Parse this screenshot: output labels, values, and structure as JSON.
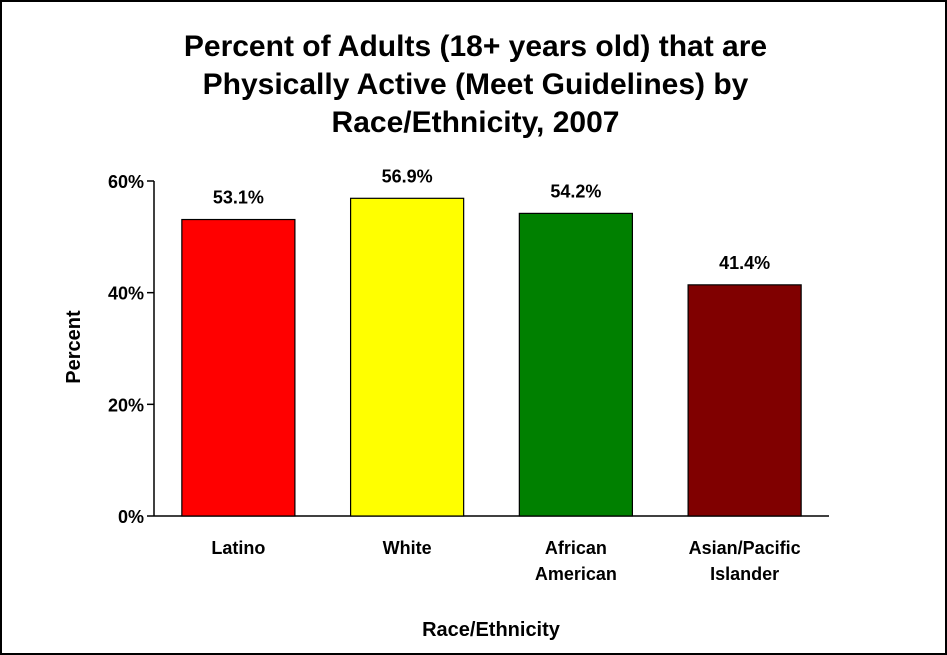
{
  "chart_data": {
    "type": "bar",
    "title_lines": [
      "Percent of Adults (18+ years old) that are",
      "Physically Active (Meet Guidelines) by",
      "Race/Ethnicity, 2007"
    ],
    "categories": [
      [
        "Latino"
      ],
      [
        "White"
      ],
      [
        "African",
        "American"
      ],
      [
        "Asian/Pacific",
        "Islander"
      ]
    ],
    "values": [
      53.1,
      56.9,
      54.2,
      41.4
    ],
    "data_labels": [
      "53.1%",
      "56.9%",
      "54.2%",
      "41.4%"
    ],
    "bar_colors": [
      "#ff0000",
      "#ffff00",
      "#008000",
      "#800000"
    ],
    "xlabel": "Race/Ethnicity",
    "ylabel": "Percent",
    "ylim": [
      0,
      60
    ],
    "yticks": [
      0,
      20,
      40,
      60
    ],
    "ytick_labels": [
      "0%",
      "20%",
      "40%",
      "60%"
    ],
    "grid": false,
    "legend": "none"
  }
}
